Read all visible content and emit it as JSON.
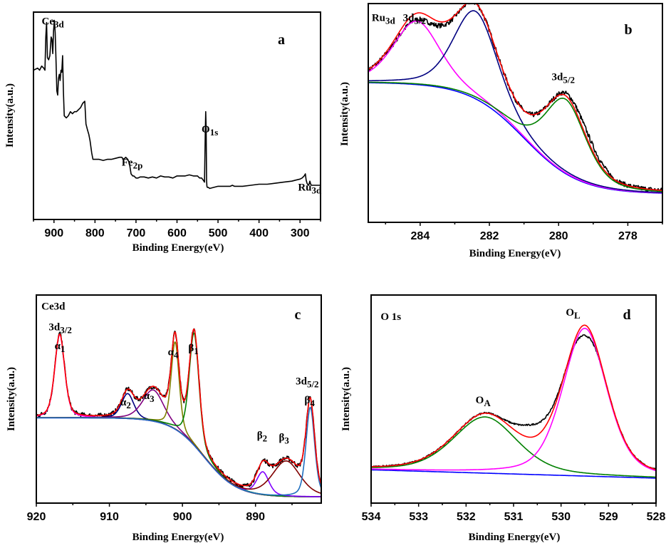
{
  "chart_data": [
    {
      "id": "a",
      "type": "line",
      "title": "",
      "panel_label": "a",
      "xlabel": "Binding Energy(eV)",
      "ylabel": "Intensity(a.u.)",
      "xlim": [
        950,
        250
      ],
      "ylim": [
        0,
        100
      ],
      "grid": false,
      "xticks": [
        900,
        800,
        700,
        600,
        500,
        400,
        300
      ],
      "xminor": [
        950,
        850,
        750,
        650,
        550,
        450,
        350,
        250
      ],
      "annotations": [
        {
          "text": "Ce",
          "sub": "3d",
          "x": 930,
          "y": 94
        },
        {
          "text": "Fe",
          "sub": "2p",
          "x": 735,
          "y": 26
        },
        {
          "text": "O",
          "sub": "1s",
          "x": 540,
          "y": 42
        },
        {
          "text": "Ru",
          "sub": "3d",
          "x": 305,
          "y": 14
        }
      ],
      "series": [
        {
          "name": "survey",
          "color": "#000000",
          "x": [
            950,
            940,
            935,
            930,
            925,
            922,
            920,
            918,
            916,
            913,
            910,
            907,
            905,
            903,
            901,
            899,
            897,
            895,
            893,
            891,
            889,
            887,
            885,
            883,
            881,
            879,
            877,
            875,
            870,
            865,
            860,
            855,
            850,
            845,
            840,
            835,
            830,
            825,
            822,
            818,
            815,
            812,
            808,
            805,
            800,
            795,
            790,
            780,
            770,
            760,
            750,
            740,
            735,
            730,
            725,
            720,
            716,
            712,
            708,
            705,
            700,
            695,
            690,
            680,
            670,
            660,
            650,
            640,
            630,
            620,
            610,
            600,
            590,
            580,
            570,
            560,
            550,
            545,
            540,
            536,
            533,
            531,
            530,
            529,
            528,
            527,
            526,
            524,
            520,
            510,
            500,
            490,
            480,
            470,
            465,
            460,
            450,
            440,
            420,
            400,
            380,
            360,
            340,
            320,
            310,
            300,
            295,
            290,
            287,
            285,
            283,
            280,
            278,
            276,
            274,
            272,
            270,
            265,
            260,
            255,
            250
          ],
          "y": [
            72,
            73,
            72,
            74,
            73,
            72,
            88,
            95,
            78,
            77,
            79,
            88,
            87,
            80,
            91,
            96,
            90,
            76,
            62,
            60,
            68,
            70,
            67,
            72,
            71,
            79,
            62,
            50,
            49,
            50,
            52,
            51,
            52,
            52,
            53,
            54,
            56,
            57,
            46,
            43,
            41,
            38,
            32,
            29,
            29,
            29,
            29,
            28.5,
            29,
            29,
            29.5,
            30,
            30,
            29,
            30,
            29,
            27,
            22,
            21,
            21,
            20,
            20,
            20.5,
            20.5,
            20,
            20.5,
            20,
            21,
            20.5,
            20.5,
            20,
            21,
            21,
            21,
            21.5,
            21,
            21,
            20,
            20,
            19,
            18,
            42,
            52,
            44,
            19,
            16,
            15.5,
            15.5,
            15,
            15.5,
            16,
            16,
            16,
            16,
            16.5,
            16,
            16,
            16,
            16.5,
            17,
            17,
            17.5,
            18,
            18.5,
            19,
            19.5,
            20,
            21,
            22,
            19,
            17.5,
            16.5,
            17,
            18.5,
            17,
            16.5,
            16.5,
            16.5,
            16.5,
            16.5,
            16.5
          ]
        }
      ]
    },
    {
      "id": "b",
      "type": "line",
      "title": "",
      "panel_label": "b",
      "xlabel": "Binding Energy(eV)",
      "ylabel": "Intensity(a.u.)",
      "xlim": [
        285.5,
        277
      ],
      "ylim": [
        0,
        100
      ],
      "grid": false,
      "xticks": [
        284,
        282,
        280,
        278
      ],
      "xminor": [
        285,
        283,
        281,
        279,
        277
      ],
      "annotations": [
        {
          "text": "Ru",
          "sub": "3d",
          "x": 285.4,
          "y": 92
        },
        {
          "text": "3d",
          "sub": "3/2",
          "x": 284.5,
          "y": 92
        },
        {
          "text": "3d",
          "sub": "5/2",
          "x": 280.2,
          "y": 65
        }
      ],
      "baseline": {
        "description": "Shirley-type background",
        "high_be": 64,
        "low_be": 13,
        "center": 281.0,
        "width": 1.6
      },
      "components": [
        {
          "name": "Ru 3d3/2 (magenta)",
          "color": "#ff00ff",
          "center": 284.1,
          "height": 29,
          "fwhm": 1.6
        },
        {
          "name": "282.4 component (navy)",
          "color": "#000080",
          "center": 282.4,
          "height": 40,
          "fwhm": 1.5
        },
        {
          "name": "Ru 3d5/2 (green)",
          "color": "#008000",
          "center": 279.8,
          "height": 34,
          "fwhm": 1.4
        }
      ],
      "series": [
        {
          "name": "background",
          "color": "#0000ff"
        },
        {
          "name": "envelope",
          "color": "#ff0000"
        },
        {
          "name": "raw data",
          "color": "#000000"
        }
      ]
    },
    {
      "id": "c",
      "type": "line",
      "title": "",
      "panel_label": "c",
      "xlabel": "Binding Energy(eV)",
      "ylabel": "Intensity(a.u.)",
      "xlim": [
        920,
        881
      ],
      "ylim": [
        0,
        100
      ],
      "grid": false,
      "xticks": [
        920,
        910,
        900,
        890
      ],
      "xminor": [
        915,
        905,
        895,
        885
      ],
      "annotations": [
        {
          "text": "Ce3d",
          "sub": "",
          "x": 919.3,
          "y": 93
        },
        {
          "text": "3d",
          "sub": "3/2",
          "x": 918.3,
          "y": 83
        },
        {
          "text": "α",
          "sub": "1",
          "x": 917.5,
          "y": 74
        },
        {
          "text": "α",
          "sub": "2",
          "x": 908.5,
          "y": 47
        },
        {
          "text": "α",
          "sub": "3",
          "x": 905.3,
          "y": 50
        },
        {
          "text": "α",
          "sub": "4",
          "x": 902,
          "y": 71
        },
        {
          "text": "β",
          "sub": "1",
          "x": 899.2,
          "y": 73
        },
        {
          "text": "β",
          "sub": "2",
          "x": 889.8,
          "y": 31
        },
        {
          "text": "β",
          "sub": "3",
          "x": 886.8,
          "y": 30
        },
        {
          "text": "3d",
          "sub": "5/2",
          "x": 884.5,
          "y": 57
        },
        {
          "text": "β",
          "sub": "4",
          "x": 883.3,
          "y": 48
        }
      ],
      "baseline": {
        "description": "Shirley-type background",
        "high_be": 41,
        "low_be": 3,
        "center": 897,
        "width": 4.5
      },
      "components": [
        {
          "name": "α1",
          "color": "#ff00ff",
          "center": 916.8,
          "height": 40,
          "fwhm": 1.6
        },
        {
          "name": "α2",
          "color": "#000080",
          "center": 907.5,
          "height": 12,
          "fwhm": 2.0
        },
        {
          "name": "α3",
          "color": "#800080",
          "center": 904.0,
          "height": 15,
          "fwhm": 3.4
        },
        {
          "name": "α4",
          "color": "#808000",
          "center": 901.0,
          "height": 42,
          "fwhm": 1.3
        },
        {
          "name": "β1",
          "color": "#008000",
          "center": 898.4,
          "height": 54,
          "fwhm": 1.6
        },
        {
          "name": "β2",
          "color": "#8000ff",
          "center": 889.0,
          "height": 11,
          "fwhm": 2.0
        },
        {
          "name": "β3",
          "color": "#800000",
          "center": 885.8,
          "height": 17,
          "fwhm": 4.5
        },
        {
          "name": "β4",
          "color": "#1f6fc0",
          "center": 882.5,
          "height": 43,
          "fwhm": 1.4
        }
      ],
      "series": [
        {
          "name": "background",
          "color": "#3a7ec0"
        },
        {
          "name": "envelope",
          "color": "#ff0000"
        },
        {
          "name": "raw data",
          "color": "#000000"
        }
      ]
    },
    {
      "id": "d",
      "type": "line",
      "title": "",
      "panel_label": "d",
      "xlabel": "Binding Energy(eV)",
      "ylabel": "Intensity(a.u.)",
      "xlim": [
        534,
        528
      ],
      "ylim": [
        0,
        100
      ],
      "grid": false,
      "xticks": [
        534,
        533,
        532,
        531,
        530,
        529,
        528
      ],
      "xminor": [
        533.5,
        532.5,
        531.5,
        530.5,
        529.5,
        528.5
      ],
      "annotations": [
        {
          "text": "O 1s",
          "sub": "",
          "x": 533.8,
          "y": 88
        },
        {
          "text": "O",
          "sub": "A",
          "x": 531.8,
          "y": 48
        },
        {
          "text": "O",
          "sub": "L",
          "x": 529.9,
          "y": 90
        }
      ],
      "baseline": {
        "description": "linear background",
        "high_be": 16,
        "low_be": 12
      },
      "components": [
        {
          "name": "O_A (green)",
          "color": "#008000",
          "center": 531.6,
          "height": 27,
          "fwhm": 1.6
        },
        {
          "name": "O_L (magenta)",
          "color": "#ff00ff",
          "center": 529.5,
          "height": 71,
          "fwhm": 1.1
        }
      ],
      "series": [
        {
          "name": "background",
          "color": "#0000ff"
        },
        {
          "name": "envelope",
          "color": "#ff0000"
        },
        {
          "name": "raw data",
          "color": "#000000"
        }
      ]
    }
  ]
}
